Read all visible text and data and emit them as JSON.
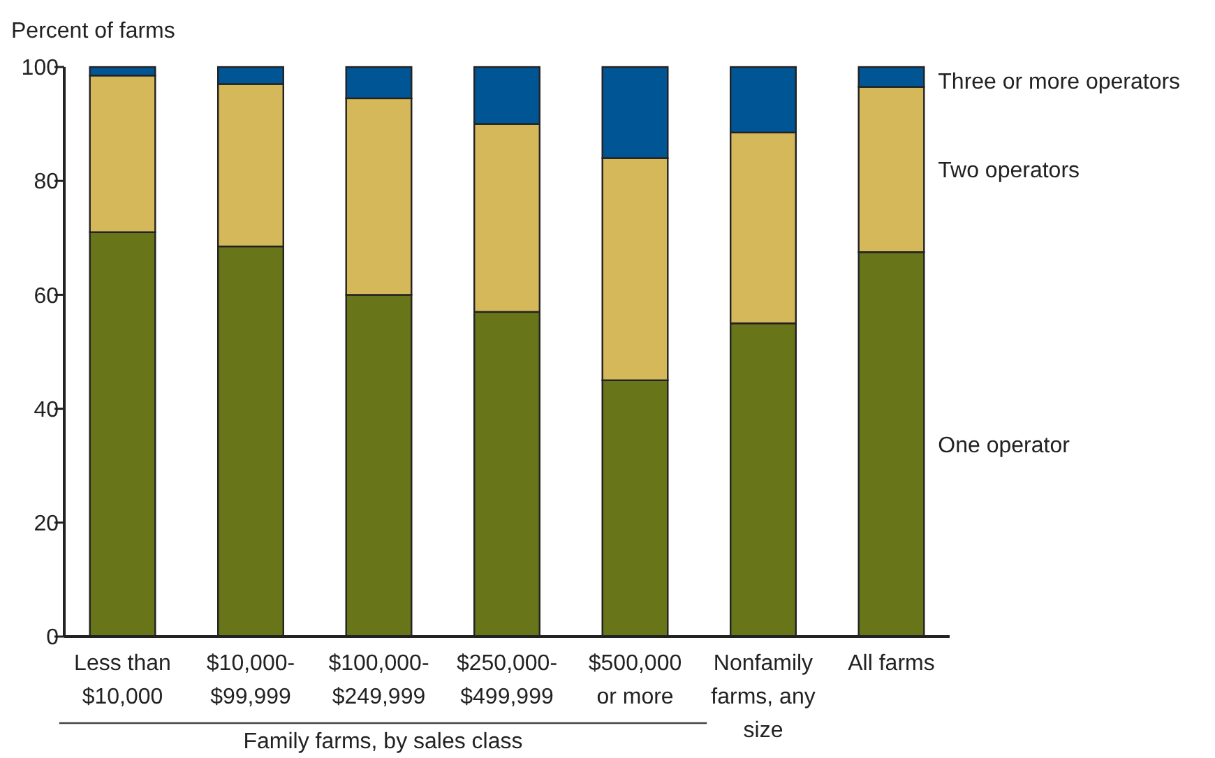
{
  "chart_data": {
    "type": "bar",
    "ylabel": "Percent of farms",
    "stacked": true,
    "categories": [
      "Less than $10,000",
      "$10,000-$99,999",
      "$100,000-$249,999",
      "$250,000-$499,999",
      "$500,000 or more",
      "Nonfamily farms, any size",
      "All farms"
    ],
    "series": [
      {
        "name": "One operator",
        "color": "#687519",
        "values": [
          71,
          68.5,
          60,
          57,
          45,
          55,
          67.5
        ]
      },
      {
        "name": "Two operators",
        "color": "#d5b85a",
        "values": [
          27.5,
          28.5,
          34.5,
          33,
          39,
          33.5,
          29
        ]
      },
      {
        "name": "Three or more operators",
        "color": "#005595",
        "values": [
          1.5,
          3,
          5.5,
          10,
          16,
          11.5,
          3.5
        ]
      }
    ],
    "ylim": [
      0,
      100
    ],
    "yticks": [
      0,
      20,
      40,
      60,
      80,
      100
    ],
    "grid": false,
    "legend": "right",
    "annotations": [
      "Family farms, by sales class"
    ]
  }
}
